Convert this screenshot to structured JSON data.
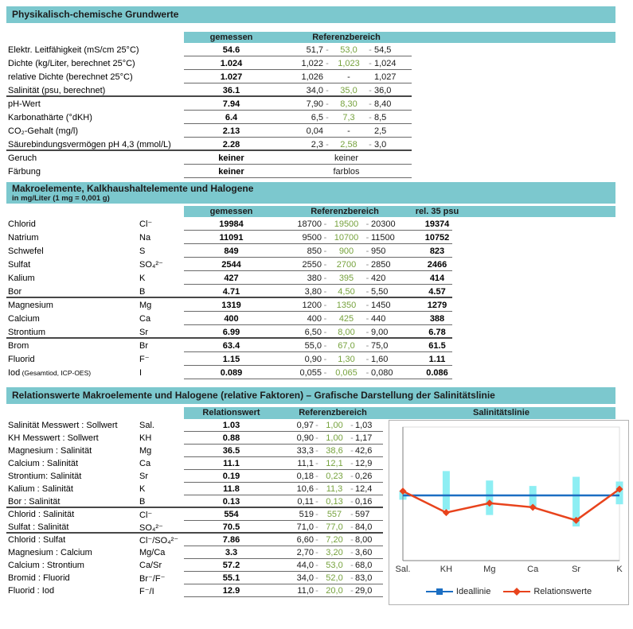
{
  "colors": {
    "header_teal": "#7cc8ce",
    "reference_mid_green": "#76a23d",
    "ideal_line_blue": "#1b6ec2",
    "relation_line_red": "#e8431c",
    "reference_band_cyan": "#8deef3"
  },
  "sections": {
    "physchem": {
      "title": "Physikalisch-chemische Grundwerte",
      "header": {
        "measured": "gemessen",
        "reference": "Referenzbereich"
      },
      "rows": [
        {
          "label": "Elektr. Leitfähigkeit (mS/cm 25°C)",
          "measured": "54.6",
          "ref": {
            "low": "51,7",
            "mid": "53,0",
            "high": "54,5"
          }
        },
        {
          "label": "Dichte (kg/Liter, berechnet 25°C)",
          "measured": "1.024",
          "ref": {
            "low": "1,022",
            "mid": "1,023",
            "high": "1,024"
          }
        },
        {
          "label": "relative Dichte (berechnet 25°C)",
          "measured": "1.027",
          "ref": {
            "low": "1,026",
            "high": "1,027"
          }
        },
        {
          "label": "Salinität (psu, berechnet)",
          "measured": "36.1",
          "ref": {
            "low": "34,0",
            "mid": "35,0",
            "high": "36,0"
          },
          "group_end": true
        },
        {
          "label": "pH-Wert",
          "measured": "7.94",
          "ref": {
            "low": "7,90",
            "mid": "8,30",
            "high": "8,40"
          }
        },
        {
          "label": "Karbonathärte (°dKH)",
          "measured": "6.4",
          "ref": {
            "low": "6,5",
            "mid": "7,3",
            "high": "8,5"
          }
        },
        {
          "label": "CO₂-Gehalt (mg/l)",
          "measured": "2.13",
          "ref": {
            "low": "0,04",
            "high": "2,5"
          }
        },
        {
          "label": "Säurebindungsvermögen pH 4,3 (mmol/L)",
          "measured": "2.28",
          "ref": {
            "low": "2,3",
            "mid": "2,58",
            "high": "3,0"
          },
          "group_end": true
        },
        {
          "label": "Geruch",
          "measured": "keiner",
          "ref": {
            "text": "keiner"
          }
        },
        {
          "label": "Färbung",
          "measured": "keiner",
          "ref": {
            "text": "farblos"
          }
        }
      ]
    },
    "macro": {
      "title": "Makroelemente, Kalkhaushaltelemente und Halogene",
      "subtitle": "in mg/Liter (1 mg = 0,001 g)",
      "header": {
        "measured": "gemessen",
        "reference": "Referenzbereich",
        "rel": "rel. 35 psu"
      },
      "rows": [
        {
          "label": "Chlorid",
          "symbol": "Cl⁻",
          "measured": "19984",
          "ref": {
            "low": "18700",
            "mid": "19500",
            "high": "20300"
          },
          "rel": "19374"
        },
        {
          "label": "Natrium",
          "symbol": "Na",
          "measured": "11091",
          "ref": {
            "low": "9500",
            "mid": "10700",
            "high": "11500"
          },
          "rel": "10752"
        },
        {
          "label": "Schwefel",
          "symbol": "S",
          "measured": "849",
          "ref": {
            "low": "850",
            "mid": "900",
            "high": "950"
          },
          "rel": "823"
        },
        {
          "label": "Sulfat",
          "symbol": "SO₄²⁻",
          "measured": "2544",
          "ref": {
            "low": "2550",
            "mid": "2700",
            "high": "2850"
          },
          "rel": "2466"
        },
        {
          "label": "Kalium",
          "symbol": "K",
          "measured": "427",
          "ref": {
            "low": "380",
            "mid": "395",
            "high": "420"
          },
          "rel": "414"
        },
        {
          "label": "Bor",
          "symbol": "B",
          "measured": "4.71",
          "ref": {
            "low": "3,80",
            "mid": "4,50",
            "high": "5,50"
          },
          "rel": "4.57",
          "group_end": true
        },
        {
          "label": "Magnesium",
          "symbol": "Mg",
          "measured": "1319",
          "ref": {
            "low": "1200",
            "mid": "1350",
            "high": "1450"
          },
          "rel": "1279"
        },
        {
          "label": "Calcium",
          "symbol": "Ca",
          "measured": "400",
          "ref": {
            "low": "400",
            "mid": "425",
            "high": "440"
          },
          "rel": "388"
        },
        {
          "label": "Strontium",
          "symbol": "Sr",
          "measured": "6.99",
          "ref": {
            "low": "6,50",
            "mid": "8,00",
            "high": "9,00"
          },
          "rel": "6.78",
          "group_end": true
        },
        {
          "label": "Brom",
          "symbol": "Br",
          "measured": "63.4",
          "ref": {
            "low": "55,0",
            "mid": "67,0",
            "high": "75,0"
          },
          "rel": "61.5"
        },
        {
          "label": "Fluorid",
          "symbol": "F⁻",
          "measured": "1.15",
          "ref": {
            "low": "0,90",
            "mid": "1,30",
            "high": "1,60"
          },
          "rel": "1.11"
        },
        {
          "label": "Iod",
          "note": "(Gesamtiod, ICP-OES)",
          "symbol": "I",
          "measured": "0.089",
          "ref": {
            "low": "0,055",
            "mid": "0,065",
            "high": "0,080"
          },
          "rel": "0.086"
        }
      ]
    },
    "relations": {
      "title": "Relationswerte Makroelemente und Halogene (relative Faktoren) – Grafische Darstellung der Salinitätslinie",
      "header": {
        "measured": "Relationswert",
        "reference": "Referenzbereich",
        "chart": "Salinitätslinie"
      },
      "rows": [
        {
          "label": "Salinität Messwert : Sollwert",
          "symbol": "Sal.",
          "measured": "1.03",
          "ref": {
            "low": "0,97",
            "mid": "1,00",
            "high": "1,03"
          }
        },
        {
          "label": "KH Messwert : Sollwert",
          "symbol": "KH",
          "measured": "0.88",
          "ref": {
            "low": "0,90",
            "mid": "1,00",
            "high": "1,17"
          }
        },
        {
          "label": "Magnesium : Salinität",
          "symbol": "Mg",
          "measured": "36.5",
          "ref": {
            "low": "33,3",
            "mid": "38,6",
            "high": "42,6"
          }
        },
        {
          "label": "Calcium : Salinität",
          "symbol": "Ca",
          "measured": "11.1",
          "ref": {
            "low": "11,1",
            "mid": "12,1",
            "high": "12,9"
          }
        },
        {
          "label": "Strontium: Salinität",
          "symbol": "Sr",
          "measured": "0.19",
          "ref": {
            "low": "0,18",
            "mid": "0,23",
            "high": "0,26"
          }
        },
        {
          "label": "Kalium : Salinität",
          "symbol": "K",
          "measured": "11.8",
          "ref": {
            "low": "10,6",
            "mid": "11,3",
            "high": "12,4"
          }
        },
        {
          "label": "Bor : Salinität",
          "symbol": "B",
          "measured": "0.13",
          "ref": {
            "low": "0,11",
            "mid": "0,13",
            "high": "0,16"
          },
          "group_end": true
        },
        {
          "label": "Chlorid : Salinität",
          "symbol": "Cl⁻",
          "measured": "554",
          "ref": {
            "low": "519",
            "mid": "557",
            "high": "597"
          }
        },
        {
          "label": "Sulfat : Salinität",
          "symbol": "SO₄²⁻",
          "measured": "70.5",
          "ref": {
            "low": "71,0",
            "mid": "77,0",
            "high": "84,0"
          },
          "group_end": true
        },
        {
          "label": "Chlorid : Sulfat",
          "symbol": "Cl⁻/SO₄²⁻",
          "measured": "7.86",
          "ref": {
            "low": "6,60",
            "mid": "7,20",
            "high": "8,00"
          }
        },
        {
          "label": "Magnesium : Calcium",
          "symbol": "Mg/Ca",
          "measured": "3.3",
          "ref": {
            "low": "2,70",
            "mid": "3,20",
            "high": "3,60"
          }
        },
        {
          "label": "Calcium : Strontium",
          "symbol": "Ca/Sr",
          "measured": "57.2",
          "ref": {
            "low": "44,0",
            "mid": "53,0",
            "high": "68,0"
          }
        },
        {
          "label": "Bromid : Fluorid",
          "symbol": "Br⁻/F⁻",
          "measured": "55.1",
          "ref": {
            "low": "34,0",
            "mid": "52,0",
            "high": "83,0"
          }
        },
        {
          "label": "Fluorid : Iod",
          "symbol": "F⁻/I",
          "measured": "12.9",
          "ref": {
            "low": "11,0",
            "mid": "20,0",
            "high": "29,0"
          }
        }
      ]
    }
  },
  "chart_data": {
    "type": "line",
    "title": "Salinitätslinie",
    "categories": [
      "Sal.",
      "KH",
      "Mg",
      "Ca",
      "Sr",
      "K"
    ],
    "series": [
      {
        "name": "Ideallinie",
        "color": "#1b6ec2",
        "marker": "square",
        "values": [
          1.0,
          1.0,
          1.0,
          1.0,
          1.0,
          1.0
        ]
      },
      {
        "name": "Relationswerte",
        "color": "#e8431c",
        "marker": "diamond",
        "values": [
          1.03,
          0.88,
          0.946,
          0.917,
          0.826,
          1.044
        ]
      }
    ],
    "reference_bands": [
      {
        "category": "Sal.",
        "low": 0.97,
        "high": 1.03
      },
      {
        "category": "KH",
        "low": 0.9,
        "high": 1.17
      },
      {
        "category": "Mg",
        "low": 0.863,
        "high": 1.104
      },
      {
        "category": "Ca",
        "low": 0.917,
        "high": 1.066
      },
      {
        "category": "Sr",
        "low": 0.783,
        "high": 1.13
      },
      {
        "category": "K",
        "low": 0.938,
        "high": 1.097
      }
    ],
    "band_color": "#8deef3",
    "ylim": [
      0.52,
      1.48
    ],
    "grid": false,
    "legend_position": "bottom",
    "note": "values are measured/ideal ratios; ideal line = 1.0"
  }
}
